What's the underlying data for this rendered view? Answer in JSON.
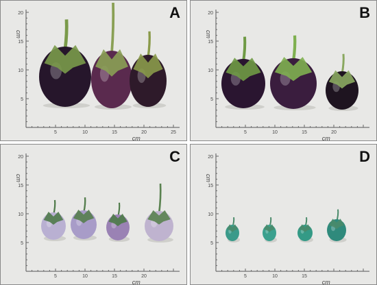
{
  "panels": [
    {
      "label": "A",
      "x_labels": [
        "5",
        "10",
        "15",
        "20",
        "25"
      ],
      "y_labels": [
        "5",
        "10",
        "15",
        "20"
      ],
      "unit": "cm"
    },
    {
      "label": "B",
      "x_labels": [
        "5",
        "10",
        "15",
        "20"
      ],
      "y_labels": [
        "5",
        "10",
        "15",
        "20"
      ],
      "unit": "cm"
    },
    {
      "label": "C",
      "x_labels": [
        "5",
        "10",
        "15",
        "20"
      ],
      "y_labels": [
        "5",
        "10",
        "15",
        "20"
      ],
      "unit": "cm"
    },
    {
      "label": "D",
      "x_labels": [
        "5",
        "10",
        "15"
      ],
      "y_labels": [
        "5",
        "10",
        "15",
        "20"
      ],
      "unit": "cm"
    }
  ]
}
